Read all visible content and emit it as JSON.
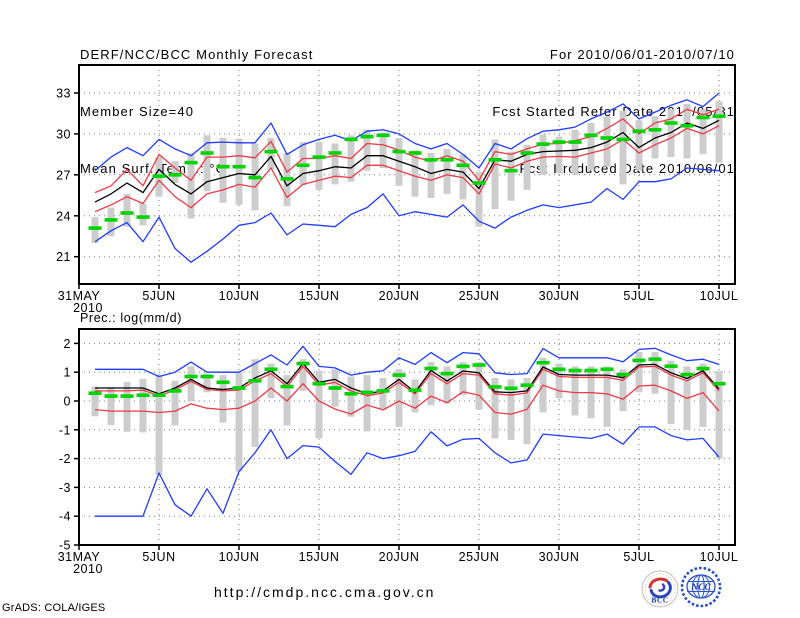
{
  "header": {
    "left": [
      "DERF/NCC/BCC Monthly Forecast",
      "Member Size=40",
      "Mean Surf. Temp.: °C"
    ],
    "right": [
      "For 2010/06/01-2010/07/10",
      "Fcst Started Refer Date 2010/05/31",
      "Fcst Produced Date 2010/06/01"
    ]
  },
  "footer": {
    "url": "http://cmdp.ncc.cma.gov.cn",
    "credit": "GrADS: COLA/IGES",
    "bcc_label": "BCC",
    "ncc_label": "NCC"
  },
  "colors": {
    "blue": "#1e3cff",
    "red": "#ee3a46",
    "green": "#00d400",
    "gray_bar": "#cdcdcd",
    "grid": "#7d7d7d",
    "frame": "#000000"
  },
  "chart_data": [
    {
      "type": "line",
      "name": "temperature",
      "title": "Mean Surf. Temp.: °C",
      "grid": "dotted",
      "legend_position": "none",
      "ylim": [
        19.0,
        35.05
      ],
      "yticks": [
        33,
        30,
        27,
        24,
        21
      ],
      "x_axis": {
        "days_total": 41,
        "tick_days": [
          0,
          5,
          10,
          15,
          20,
          25,
          30,
          35,
          40
        ],
        "tick_labels": [
          "31MAY",
          "5JUN",
          "10JUN",
          "15JUN",
          "20JUN",
          "25JUN",
          "30JUN",
          "5JUL",
          "10JUL"
        ],
        "year_label": "2010"
      },
      "series": [
        {
          "name": "blue-envelope-max",
          "color": "#1e3cff",
          "values": [
            27.3,
            28.3,
            29.0,
            28.4,
            29.6,
            28.9,
            28.4,
            29.35,
            29.4,
            29.35,
            29.35,
            30.8,
            28.5,
            29.2,
            29.6,
            29.9,
            29.5,
            30.2,
            30.3,
            30.0,
            29.3,
            28.9,
            29.3,
            28.5,
            27.5,
            29.3,
            28.9,
            29.65,
            30.2,
            30.3,
            30.5,
            31.1,
            31.6,
            32.2,
            31.1,
            31.6,
            32.1,
            32.5,
            32.0,
            33.0
          ]
        },
        {
          "name": "red-upper",
          "color": "#ee3a46",
          "values": [
            25.7,
            26.2,
            27.4,
            26.2,
            28.5,
            27.5,
            26.6,
            28.3,
            28.3,
            28.4,
            28.25,
            29.45,
            27.2,
            28.2,
            28.2,
            28.4,
            28.2,
            29.3,
            29.2,
            28.8,
            28.3,
            28.0,
            28.4,
            28.0,
            26.6,
            28.7,
            28.5,
            28.9,
            29.25,
            29.3,
            29.5,
            29.8,
            30.4,
            31.1,
            30.0,
            30.8,
            31.1,
            31.8,
            31.4,
            31.8
          ]
        },
        {
          "name": "ensemble-mean",
          "color": "#000000",
          "values": [
            25.0,
            25.6,
            26.4,
            25.7,
            27.4,
            26.3,
            25.6,
            26.5,
            26.8,
            27.1,
            27.0,
            28.35,
            26.2,
            27.1,
            27.3,
            27.6,
            27.5,
            28.4,
            28.4,
            28.0,
            27.6,
            27.1,
            27.4,
            27.2,
            26.0,
            28.1,
            28.0,
            28.5,
            28.7,
            28.75,
            28.8,
            29.0,
            29.4,
            30.1,
            29.0,
            29.7,
            30.1,
            30.8,
            30.4,
            31.0
          ]
        },
        {
          "name": "red-lower",
          "color": "#ee3a46",
          "values": [
            24.3,
            24.8,
            25.4,
            24.9,
            26.6,
            25.4,
            24.6,
            25.6,
            25.9,
            26.3,
            26.1,
            27.5,
            25.35,
            26.3,
            26.6,
            26.9,
            26.8,
            27.7,
            27.7,
            27.3,
            26.9,
            26.6,
            27.0,
            26.8,
            25.6,
            27.8,
            27.5,
            28.0,
            28.3,
            28.35,
            28.3,
            28.6,
            28.9,
            29.6,
            28.6,
            29.2,
            29.7,
            30.4,
            30.0,
            30.6
          ]
        },
        {
          "name": "blue-envelope-min",
          "color": "#1e3cff",
          "values": [
            22.1,
            22.9,
            23.5,
            22.1,
            23.9,
            21.6,
            20.6,
            21.4,
            22.3,
            23.3,
            23.5,
            24.2,
            22.6,
            23.4,
            23.3,
            23.2,
            24.1,
            24.6,
            25.6,
            24.0,
            24.3,
            24.1,
            23.9,
            24.8,
            23.6,
            23.1,
            23.9,
            24.4,
            24.8,
            24.6,
            24.8,
            25.0,
            26.0,
            25.2,
            26.5,
            26.5,
            26.7,
            27.5,
            27.4,
            27.3
          ]
        }
      ],
      "markers": {
        "name": "green-obs-dashes",
        "color": "#00d400",
        "values": [
          23.1,
          23.7,
          24.2,
          23.9,
          26.9,
          27.0,
          27.9,
          28.6,
          27.6,
          27.6,
          26.8,
          28.7,
          26.7,
          27.7,
          28.3,
          28.6,
          29.6,
          29.8,
          29.9,
          28.7,
          28.6,
          28.1,
          28.1,
          27.7,
          26.4,
          28.1,
          27.3,
          28.6,
          29.25,
          29.4,
          29.4,
          29.9,
          29.7,
          29.6,
          30.2,
          30.3,
          30.8,
          30.6,
          31.2,
          31.3
        ]
      },
      "bars": {
        "name": "gray-spread-bars",
        "color": "#cdcdcd",
        "top": [
          23.9,
          24.6,
          25.6,
          24.9,
          28.3,
          28.0,
          28.6,
          29.9,
          29.7,
          29.65,
          29.3,
          29.7,
          28.6,
          29.4,
          29.4,
          29.3,
          29.9,
          30.3,
          30.1,
          29.7,
          28.8,
          28.6,
          28.9,
          28.5,
          27.2,
          29.6,
          28.7,
          29.2,
          29.95,
          29.8,
          30.3,
          30.8,
          31.3,
          31.7,
          31.0,
          31.3,
          31.8,
          32.2,
          31.8,
          32.4
        ],
        "bottom": [
          22.0,
          22.5,
          23.2,
          23.3,
          25.4,
          26.4,
          23.8,
          25.8,
          24.95,
          24.8,
          24.4,
          27.4,
          24.7,
          26.25,
          25.9,
          26.3,
          26.5,
          27.3,
          27.5,
          26.2,
          25.4,
          25.3,
          25.6,
          25.2,
          23.2,
          24.5,
          25.1,
          25.9,
          27.0,
          27.1,
          27.0,
          27.3,
          27.6,
          26.3,
          27.3,
          28.2,
          28.3,
          28.2,
          28.5,
          27.9
        ]
      }
    },
    {
      "type": "line",
      "name": "precipitation",
      "title": "Prec.: log(mm/d)",
      "grid": "dotted",
      "legend_position": "none",
      "ylim": [
        -5.0,
        2.5
      ],
      "yticks": [
        2,
        1,
        0,
        -1,
        -2,
        -3,
        -4,
        -5
      ],
      "x_axis": {
        "days_total": 41,
        "tick_days": [
          0,
          5,
          10,
          15,
          20,
          25,
          30,
          35,
          40
        ],
        "tick_labels": [
          "31MAY",
          "5JUN",
          "10JUN",
          "15JUN",
          "20JUN",
          "25JUN",
          "30JUN",
          "5JUL",
          "10JUL"
        ],
        "year_label": "2010"
      },
      "series": [
        {
          "name": "blue-envelope-max",
          "color": "#1e3cff",
          "values": [
            1.1,
            1.1,
            1.1,
            1.1,
            0.85,
            1.0,
            1.35,
            1.0,
            1.0,
            1.0,
            1.3,
            1.6,
            1.25,
            1.9,
            1.2,
            1.15,
            0.9,
            1.0,
            1.05,
            1.5,
            1.27,
            1.68,
            1.33,
            1.68,
            1.64,
            0.98,
            0.92,
            0.95,
            1.82,
            1.5,
            1.5,
            1.5,
            1.5,
            1.36,
            1.79,
            1.83,
            1.6,
            1.4,
            1.45,
            1.27
          ]
        },
        {
          "name": "red-upper",
          "color": "#ee3a46",
          "values": [
            0.35,
            0.35,
            0.35,
            0.38,
            0.18,
            0.38,
            0.68,
            0.4,
            0.35,
            0.38,
            0.7,
            0.95,
            0.5,
            1.2,
            0.55,
            0.65,
            0.35,
            0.18,
            0.28,
            0.65,
            0.25,
            0.95,
            0.6,
            0.95,
            0.9,
            0.25,
            0.2,
            0.28,
            1.1,
            0.85,
            0.82,
            0.82,
            0.82,
            0.72,
            1.18,
            1.2,
            0.9,
            0.7,
            0.98,
            0.35
          ]
        },
        {
          "name": "ensemble-mean",
          "color": "#000000",
          "values": [
            0.45,
            0.45,
            0.45,
            0.45,
            0.25,
            0.45,
            0.75,
            0.45,
            0.4,
            0.45,
            0.8,
            1.05,
            0.6,
            1.3,
            0.65,
            0.75,
            0.45,
            0.25,
            0.35,
            0.75,
            0.31,
            1.06,
            0.69,
            1.04,
            0.98,
            0.32,
            0.29,
            0.35,
            1.18,
            0.92,
            0.9,
            0.9,
            0.9,
            0.81,
            1.25,
            1.27,
            0.98,
            0.78,
            1.05,
            0.42
          ]
        },
        {
          "name": "red-lower",
          "color": "#ee3a46",
          "values": [
            -0.3,
            -0.35,
            -0.35,
            -0.35,
            -0.4,
            -0.35,
            -0.1,
            -0.25,
            -0.3,
            -0.25,
            0.0,
            0.45,
            0.0,
            0.6,
            0.0,
            -0.28,
            -0.45,
            -0.14,
            -0.31,
            0.0,
            -0.25,
            0.17,
            -0.06,
            0.32,
            0.2,
            -0.4,
            -0.46,
            -0.29,
            0.55,
            0.35,
            0.29,
            0.29,
            0.25,
            0.06,
            0.52,
            0.55,
            0.35,
            0.09,
            0.29,
            -0.35
          ]
        },
        {
          "name": "blue-envelope-min",
          "color": "#1e3cff",
          "values": [
            -4.0,
            -4.0,
            -4.0,
            -4.0,
            -2.5,
            -3.6,
            -4.0,
            -3.05,
            -3.9,
            -2.45,
            -1.8,
            -1.0,
            -2.0,
            -1.55,
            -1.6,
            -2.1,
            -2.55,
            -1.8,
            -2.0,
            -1.9,
            -1.75,
            -1.07,
            -1.56,
            -1.33,
            -1.3,
            -1.8,
            -2.15,
            -2.05,
            -1.15,
            -1.2,
            -1.25,
            -1.3,
            -1.15,
            -1.5,
            -0.9,
            -0.9,
            -1.2,
            -1.35,
            -1.3,
            -1.95
          ]
        }
      ],
      "markers": {
        "name": "green-obs-dashes",
        "color": "#00d400",
        "values": [
          0.27,
          0.17,
          0.17,
          0.2,
          0.2,
          0.35,
          0.85,
          0.85,
          0.65,
          0.45,
          0.7,
          1.1,
          0.5,
          1.3,
          0.6,
          0.45,
          0.25,
          0.3,
          0.35,
          0.9,
          0.37,
          1.13,
          0.95,
          1.2,
          1.25,
          0.49,
          0.44,
          0.55,
          1.33,
          1.1,
          1.06,
          1.06,
          1.1,
          0.92,
          1.41,
          1.45,
          1.21,
          0.92,
          1.13,
          0.6
        ]
      },
      "bars": {
        "name": "gray-spread-bars",
        "color": "#cdcdcd",
        "top": [
          0.5,
          0.48,
          0.66,
          0.77,
          0.89,
          0.7,
          1.2,
          0.95,
          0.9,
          1.0,
          1.45,
          1.3,
          0.9,
          1.45,
          1.05,
          1.1,
          0.85,
          0.9,
          0.8,
          1.1,
          0.75,
          1.35,
          1.2,
          1.35,
          1.35,
          0.8,
          0.75,
          0.8,
          1.5,
          1.3,
          1.2,
          1.2,
          1.2,
          1.1,
          1.7,
          1.7,
          1.4,
          1.2,
          1.3,
          1.05
        ],
        "bottom": [
          -0.53,
          -0.84,
          -1.07,
          -1.09,
          -2.56,
          -0.85,
          0.0,
          0.3,
          -0.75,
          -2.45,
          -1.6,
          0.1,
          -0.85,
          0.35,
          -1.3,
          -0.2,
          -0.55,
          -1.05,
          -0.3,
          -0.9,
          -0.4,
          -0.15,
          -0.1,
          0.2,
          -0.3,
          -1.3,
          -1.35,
          -1.5,
          -0.4,
          0.1,
          -0.5,
          -0.6,
          -0.9,
          -0.35,
          0.3,
          0.25,
          -0.8,
          -1.0,
          -0.9,
          -2.0
        ]
      }
    }
  ]
}
